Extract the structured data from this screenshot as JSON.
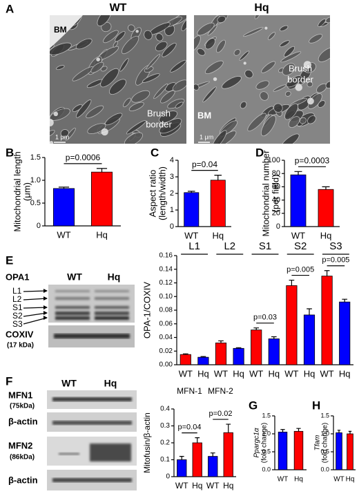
{
  "panel_a": {
    "label": "A",
    "images": [
      {
        "title": "WT",
        "labels": [
          "BM",
          [
            "Brush",
            "border"
          ]
        ],
        "scale": "1 μm"
      },
      {
        "title": "Hq",
        "labels": [
          [
            "Brush",
            "border"
          ],
          "BM"
        ],
        "scale": "1 μm"
      }
    ]
  },
  "panel_e_blot": {
    "label": "E",
    "protein": "OPA1",
    "lanes": [
      "WT",
      "Hq"
    ],
    "bands": [
      "L1",
      "L2",
      "S1",
      "S2",
      "S3"
    ],
    "loading": "COXIV",
    "loading_size": "(17 kDa)"
  },
  "panel_f_blot": {
    "label": "F",
    "lanes": [
      "WT",
      "Hq"
    ],
    "rows": [
      {
        "name": "MFN1",
        "size": "(75kDa)"
      },
      {
        "name": "β-actin"
      },
      {
        "name": "MFN2",
        "size": "(86kDa)"
      },
      {
        "name": "β-actin"
      }
    ]
  },
  "chart_data": [
    {
      "type": "bar",
      "panel": "B",
      "ylabel": [
        "Mitochondrial length",
        "(μm)"
      ],
      "categories": [
        "WT",
        "Hq"
      ],
      "values": [
        0.82,
        1.18
      ],
      "errors": [
        0.03,
        0.08
      ],
      "colors": [
        "#0000ff",
        "#ff0000"
      ],
      "ylim": [
        0,
        1.5
      ],
      "yticks": [
        0,
        0.5,
        {
          "value": 1,
          "label": "1.0"
        },
        1.5
      ],
      "annotations": [
        "p=0.0006"
      ]
    },
    {
      "type": "bar",
      "panel": "C",
      "ylabel": [
        "Aspect ratio",
        "(length/width)"
      ],
      "categories": [
        "WT",
        "Hq"
      ],
      "values": [
        2.05,
        2.8
      ],
      "errors": [
        0.08,
        0.3
      ],
      "colors": [
        "#0000ff",
        "#ff0000"
      ],
      "ylim": [
        0,
        4
      ],
      "yticks": [
        0,
        1,
        2,
        3,
        4
      ],
      "annotations": [
        "p=0.04"
      ]
    },
    {
      "type": "bar",
      "panel": "D",
      "ylabel": [
        "Mitochondrial number",
        "(per field)"
      ],
      "categories": [
        "WT",
        "Hq"
      ],
      "values": [
        78,
        56
      ],
      "errors": [
        5,
        4
      ],
      "colors": [
        "#0000ff",
        "#ff0000"
      ],
      "ylim": [
        0,
        100
      ],
      "yticks": [
        0,
        20,
        40,
        60,
        80,
        100
      ],
      "annotations": [
        "p=0.0003"
      ]
    },
    {
      "type": "grouped_bar",
      "ylabel": [
        "OPA-1/COXIV"
      ],
      "categories": [
        "L1",
        "L2",
        "S1",
        "S2",
        "S3"
      ],
      "series": [
        {
          "name": "WT",
          "color": "#ff0000",
          "values": [
            0.015,
            0.032,
            0.051,
            0.116,
            0.13
          ],
          "errors": [
            0.001,
            0.003,
            0.003,
            0.008,
            0.008
          ]
        },
        {
          "name": "Hq",
          "color": "#0000ff",
          "values": [
            0.011,
            0.024,
            0.038,
            0.073,
            0.092
          ],
          "errors": [
            0.001,
            0.001,
            0.003,
            0.009,
            0.004
          ]
        }
      ],
      "ylim": [
        0,
        0.16
      ],
      "yticks": [
        {
          "value": 0,
          "label": "0.00"
        },
        {
          "value": 0.02,
          "label": "0.02"
        },
        {
          "value": 0.04,
          "label": "0.04"
        },
        {
          "value": 0.06,
          "label": "0.06"
        },
        {
          "value": 0.08,
          "label": "0.08"
        },
        {
          "value": 0.1,
          "label": "0.10"
        },
        {
          "value": 0.12,
          "label": "0.12"
        },
        {
          "value": 0.14,
          "label": "0.14"
        },
        {
          "value": 0.16,
          "label": "0.16"
        }
      ],
      "annotations": [
        "p=0.03",
        "p=0.005",
        "p=0.005"
      ]
    },
    {
      "type": "grouped_bar",
      "ylabel": [
        "Mitofusin/β-actin"
      ],
      "categories": [
        "MFN-1",
        "MFN-2"
      ],
      "series": [
        {
          "name": "WT",
          "color": "#0000ff",
          "values": [
            0.1,
            0.12
          ],
          "errors": [
            0.02,
            0.02
          ]
        },
        {
          "name": "Hq",
          "color": "#ff0000",
          "values": [
            0.2,
            0.26
          ],
          "errors": [
            0.03,
            0.05
          ]
        }
      ],
      "ylim": [
        0,
        0.4
      ],
      "yticks": [
        0,
        0.1,
        0.2,
        0.3,
        0.4
      ],
      "annotations": [
        "p=0.04",
        "p=0.02"
      ]
    },
    {
      "type": "bar",
      "panel": "G",
      "ylabel": [
        "Ppargc1α",
        "(fold change)"
      ],
      "categories": [
        "WT",
        "Hq"
      ],
      "values": [
        1.05,
        1.07
      ],
      "errors": [
        0.07,
        0.08
      ],
      "colors": [
        "#0000ff",
        "#ff0000"
      ],
      "ylim": [
        0,
        1.5
      ],
      "yticks": [
        {
          "value": 0,
          "label": "0.0"
        },
        0.5,
        {
          "value": 1,
          "label": "1.0"
        },
        1.5
      ]
    },
    {
      "type": "bar",
      "panel": "H",
      "ylabel": [
        "Tfam",
        "(fold change)"
      ],
      "categories": [
        "WT",
        "Hq"
      ],
      "values": [
        1.03,
        1.0
      ],
      "errors": [
        0.07,
        0.07
      ],
      "colors": [
        "#0000ff",
        "#ff0000"
      ],
      "ylim": [
        0,
        1.5
      ],
      "yticks": [
        {
          "value": 0,
          "label": "0.0"
        },
        0.5,
        {
          "value": 1,
          "label": "1.0"
        },
        1.5
      ]
    }
  ]
}
